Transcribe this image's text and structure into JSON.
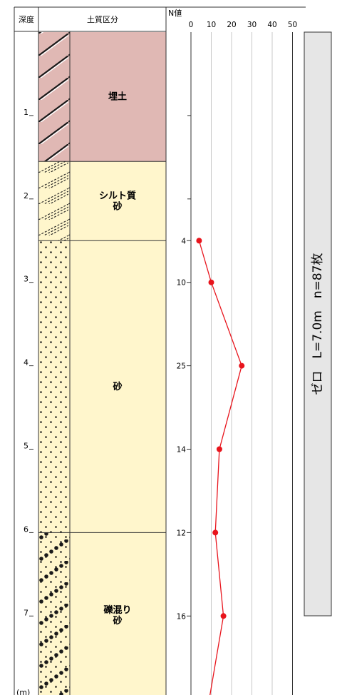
{
  "header": {
    "depth_col": "深度",
    "soil_col": "土質区分",
    "n_col": "N値",
    "n_ticks": [
      "0",
      "10",
      "20",
      "30",
      "40",
      "50"
    ]
  },
  "depth": {
    "unit": "(m)",
    "labels": [
      "1",
      "2",
      "3",
      "4",
      "5",
      "6",
      "7"
    ]
  },
  "layers": [
    {
      "name": "埋土",
      "from_m": 0.0,
      "to_m": 1.55,
      "color": "#e0b8b4",
      "pattern": "diagonal-hatch"
    },
    {
      "name": "シルト質\n砂",
      "from_m": 1.55,
      "to_m": 2.5,
      "color": "#fff6cc",
      "pattern": "double-hatch"
    },
    {
      "name": "砂",
      "from_m": 2.5,
      "to_m": 6.0,
      "color": "#fff6cc",
      "pattern": "dots"
    },
    {
      "name": "礫混り\n砂",
      "from_m": 6.0,
      "to_m": 8.0,
      "color": "#fff6cc",
      "pattern": "dots-gravel"
    }
  ],
  "chart_data": {
    "type": "line",
    "xlabel": "N値",
    "xlim": [
      0,
      50
    ],
    "x_ticks": [
      0,
      10,
      20,
      30,
      40,
      50
    ],
    "ylim": [
      0,
      8
    ],
    "series": [
      {
        "depth_m": [
          2.5,
          3.0,
          4.0,
          5.0,
          6.0,
          7.0,
          8.0
        ],
        "n_values": [
          4,
          10,
          25,
          14,
          12,
          16,
          9
        ],
        "labels": [
          "4",
          "10",
          "25",
          "14",
          "12",
          "16",
          ""
        ],
        "color": "#e8141c"
      }
    ]
  },
  "pile": {
    "label": "ゼロ　L=7.0m　n=87枚",
    "fill": "#e6e6e6"
  }
}
